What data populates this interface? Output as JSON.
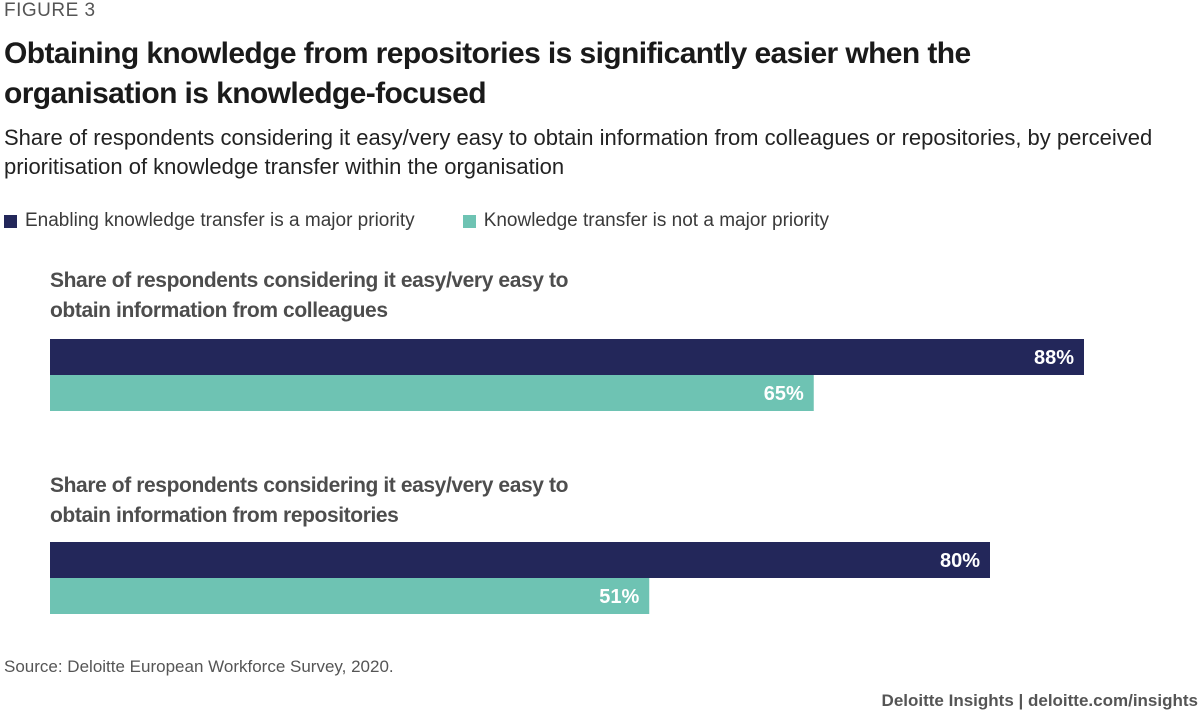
{
  "figure_label": "FIGURE 3",
  "source": "Source: Deloitte European Workforce Survey, 2020.",
  "credit": "Deloitte Insights | deloitte.com/insights",
  "colors": {
    "series1": "#23275a",
    "series2": "#6ec3b3"
  },
  "chart_data": {
    "type": "bar",
    "orientation": "horizontal",
    "title": "Obtaining knowledge from repositories is significantly easier when the organisation is knowledge-focused",
    "subtitle": "Share of respondents considering it easy/very easy to obtain information from colleagues or repositories, by perceived prioritisation of knowledge transfer within the organisation",
    "categories": [
      "Share of respondents considering it easy/very easy to obtain information from colleagues",
      "Share of respondents considering it easy/very easy to obtain information from repositories"
    ],
    "series": [
      {
        "name": "Enabling knowledge transfer is a major priority",
        "values": [
          88,
          80
        ],
        "labels": [
          "88%",
          "80%"
        ]
      },
      {
        "name": "Knowledge transfer is not a major priority",
        "values": [
          65,
          51
        ],
        "labels": [
          "65%",
          "51%"
        ]
      }
    ],
    "xlim": [
      0,
      100
    ],
    "legend": "top-left",
    "grid": false
  }
}
